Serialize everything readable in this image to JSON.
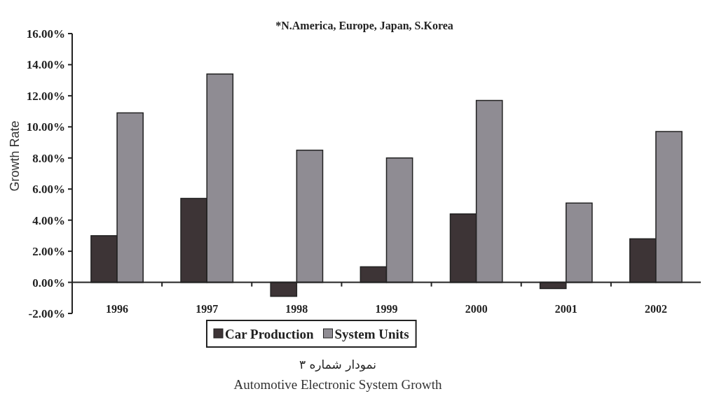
{
  "chart_data": {
    "type": "bar",
    "title": "Automotive Electronic System Growth",
    "subtitle": "نمودار شماره ۳",
    "ylabel": "Growth Rate",
    "annotations": [
      "*N.America, Europe, Japan, S.Korea"
    ],
    "categories": [
      "1996",
      "1997",
      "1998",
      "1999",
      "2000",
      "2001",
      "2002"
    ],
    "series": [
      {
        "name": "Car Production",
        "color": "#3d3436",
        "values": [
          3.0,
          5.4,
          -0.9,
          1.0,
          4.4,
          -0.4,
          2.8
        ]
      },
      {
        "name": "System Units",
        "color": "#8f8c93",
        "values": [
          10.9,
          13.4,
          8.5,
          8.0,
          11.7,
          5.1,
          9.7
        ]
      }
    ],
    "ylim": [
      -2,
      16
    ],
    "yticks": [
      {
        "value": -2,
        "label": "-2.00%"
      },
      {
        "value": 0,
        "label": "0.00%"
      },
      {
        "value": 2,
        "label": "2.00%"
      },
      {
        "value": 4,
        "label": "4.00%"
      },
      {
        "value": 6,
        "label": "6.00%"
      },
      {
        "value": 8,
        "label": "8.00%"
      },
      {
        "value": 10,
        "label": "10.00%"
      },
      {
        "value": 12,
        "label": "12.00%"
      },
      {
        "value": 14,
        "label": "14.00%"
      },
      {
        "value": 16,
        "label": "16.00%"
      }
    ],
    "legend": "bottom"
  }
}
